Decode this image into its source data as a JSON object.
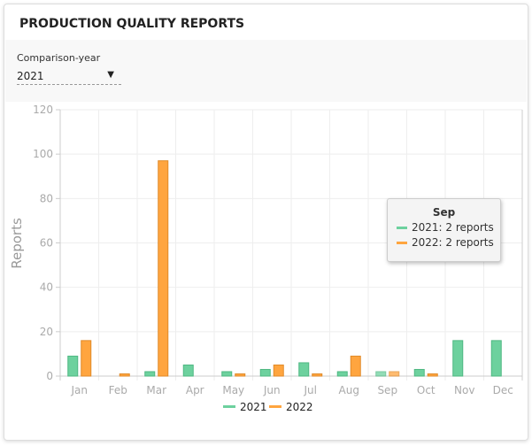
{
  "header": {
    "title": "PRODUCTION QUALITY REPORTS"
  },
  "filter": {
    "label": "Comparison-year",
    "value": "2021"
  },
  "tooltip": {
    "title": "Sep",
    "rows": [
      "2021: 2 reports",
      "2022: 2 reports"
    ]
  },
  "chart_data": {
    "type": "bar",
    "ylabel": "Reports",
    "ylim": [
      0,
      120
    ],
    "yticks": [
      0,
      20,
      40,
      60,
      80,
      100,
      120
    ],
    "categories": [
      "Jan",
      "Feb",
      "Mar",
      "Apr",
      "May",
      "Jun",
      "Jul",
      "Aug",
      "Sep",
      "Oct",
      "Nov",
      "Dec"
    ],
    "series": [
      {
        "name": "2021",
        "color": "#6dd19e",
        "values": [
          9,
          0,
          2,
          5,
          2,
          3,
          6,
          2,
          2,
          3,
          16,
          16
        ]
      },
      {
        "name": "2022",
        "color": "#ffa53f",
        "values": [
          16,
          1,
          97,
          0,
          1,
          5,
          1,
          9,
          2,
          1,
          0,
          0
        ]
      }
    ],
    "grid": true,
    "legend": "bottom"
  }
}
